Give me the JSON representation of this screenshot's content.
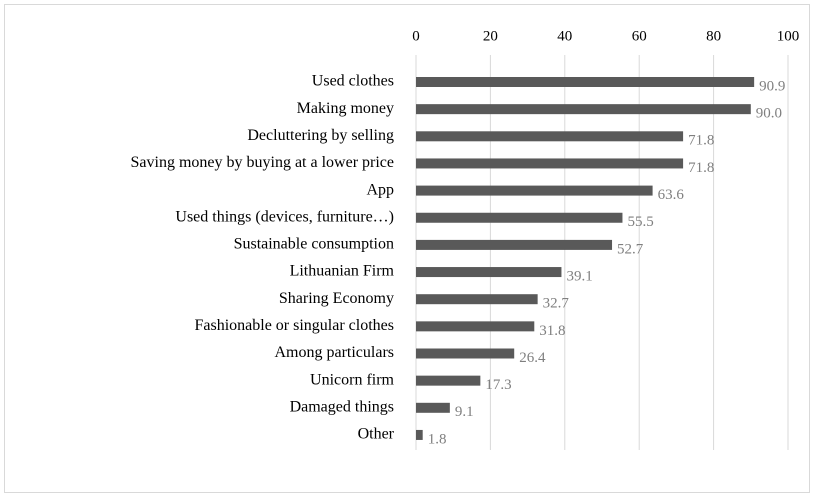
{
  "chart_data": {
    "type": "bar",
    "orientation": "horizontal",
    "categories": [
      "Used clothes",
      "Making money",
      "Decluttering by selling",
      "Saving money by buying at a lower price",
      "App",
      "Used things (devices, furniture…)",
      "Sustainable consumption",
      "Lithuanian Firm",
      "Sharing Economy",
      "Fashionable or singular clothes",
      "Among particulars",
      "Unicorn firm",
      "Damaged things",
      "Other"
    ],
    "values": [
      90.9,
      90.0,
      71.8,
      71.8,
      63.6,
      55.5,
      52.7,
      39.1,
      32.7,
      31.8,
      26.4,
      17.3,
      9.1,
      1.8
    ],
    "value_labels": [
      "90.9",
      "90.0",
      "71.8",
      "71.8",
      "63.6",
      "55.5",
      "52.7",
      "39.1",
      "32.7",
      "31.8",
      "26.4",
      "17.3",
      "9.1",
      "1.8"
    ],
    "color": "#595959",
    "xlim": [
      0,
      100
    ],
    "xticks": [
      0,
      20,
      40,
      60,
      80,
      100
    ],
    "grid": true
  }
}
